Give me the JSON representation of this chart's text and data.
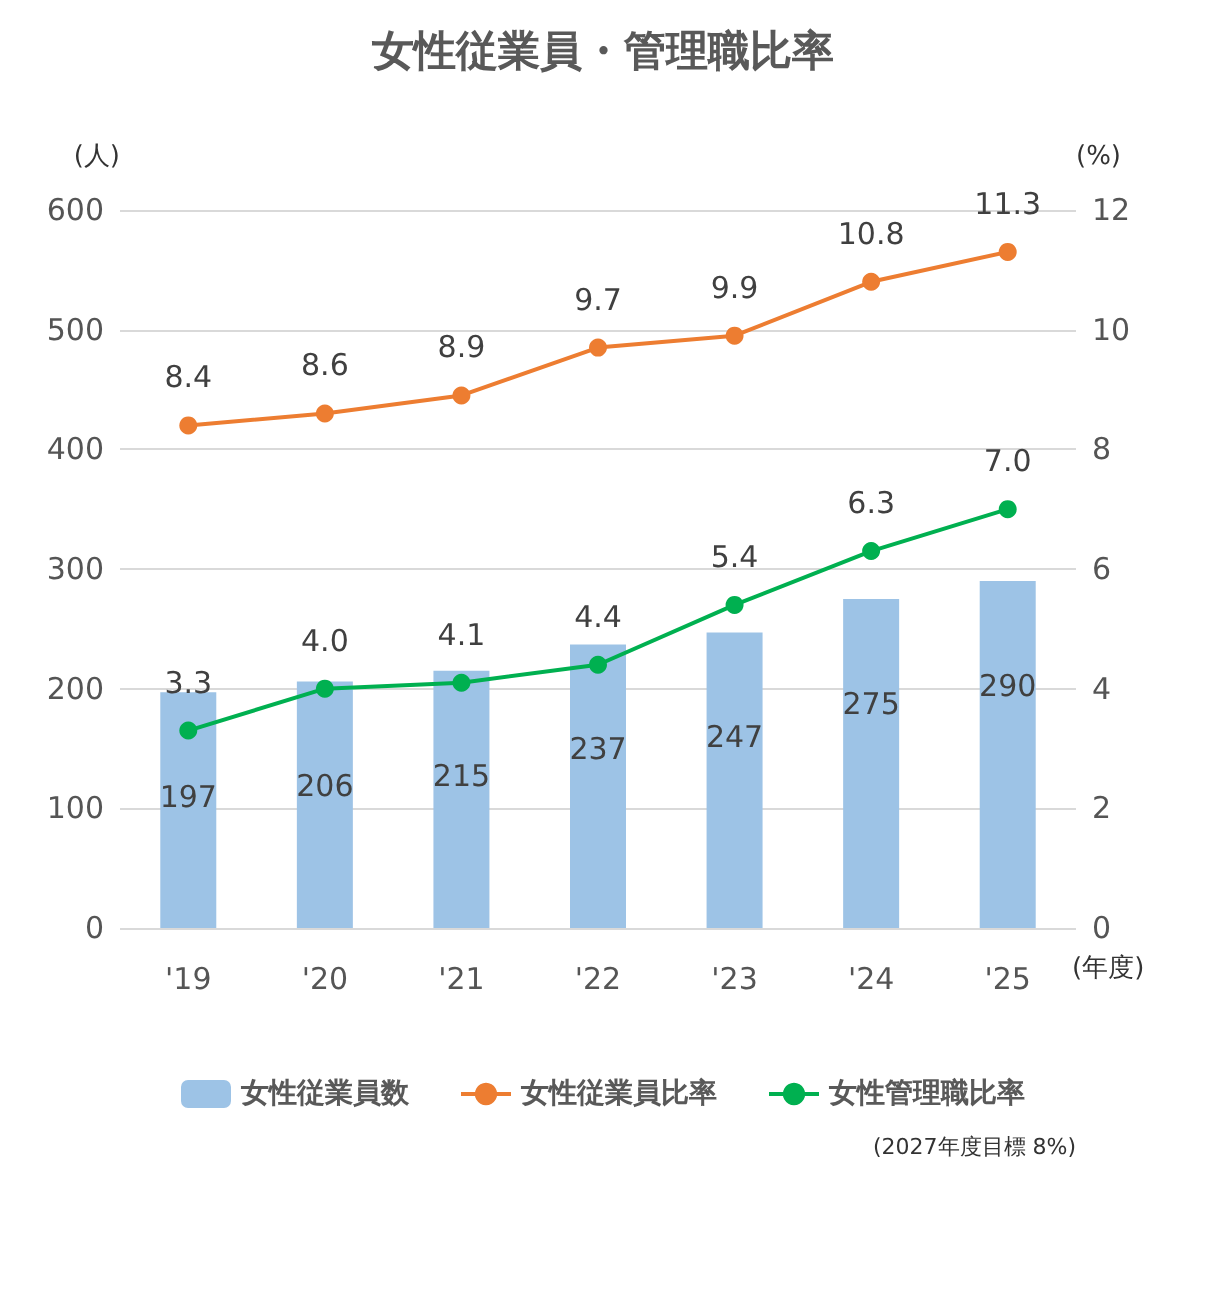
{
  "chart_data": {
    "type": "bar",
    "title": "女性従業員・管理職比率",
    "xlabel": "(年度)",
    "ylabel": "(人)",
    "y2label": "(%)",
    "categories": [
      "'19",
      "'20",
      "'21",
      "'22",
      "'23",
      "'24",
      "'25"
    ],
    "series": [
      {
        "name": "女性従業員数",
        "color": "#9dc3e6",
        "values": [
          197,
          206,
          215,
          237,
          247,
          275,
          290
        ],
        "value_labels": [
          "197",
          "206",
          "215",
          "237",
          "247",
          "275",
          "290"
        ]
      },
      {
        "name": "女性従業員比率",
        "type": "line",
        "axis": "y2",
        "color": "#ed7d31",
        "values": [
          8.4,
          8.6,
          8.9,
          9.7,
          9.9,
          10.8,
          11.3
        ],
        "value_labels": [
          "8.4",
          "8.6",
          "8.9",
          "9.7",
          "9.9",
          "10.8",
          "11.3"
        ]
      },
      {
        "name": "女性管理職比率",
        "type": "line",
        "axis": "y2",
        "color": "#00b050",
        "values": [
          3.3,
          4.0,
          4.1,
          4.4,
          5.4,
          6.3,
          7.0
        ],
        "value_labels": [
          "3.3",
          "4.0",
          "4.1",
          "4.4",
          "5.4",
          "6.3",
          "7.0"
        ]
      }
    ],
    "ylim": [
      0,
      600
    ],
    "yticks": [
      0,
      100,
      200,
      300,
      400,
      500,
      600
    ],
    "y2lim": [
      0,
      12
    ],
    "y2ticks": [
      0,
      2,
      4,
      6,
      8,
      10,
      12
    ],
    "grid": "y",
    "legend": "bottom",
    "marker": "circle",
    "line_style": "solid",
    "annotations": [
      "(2027年度目標 8%)"
    ]
  }
}
